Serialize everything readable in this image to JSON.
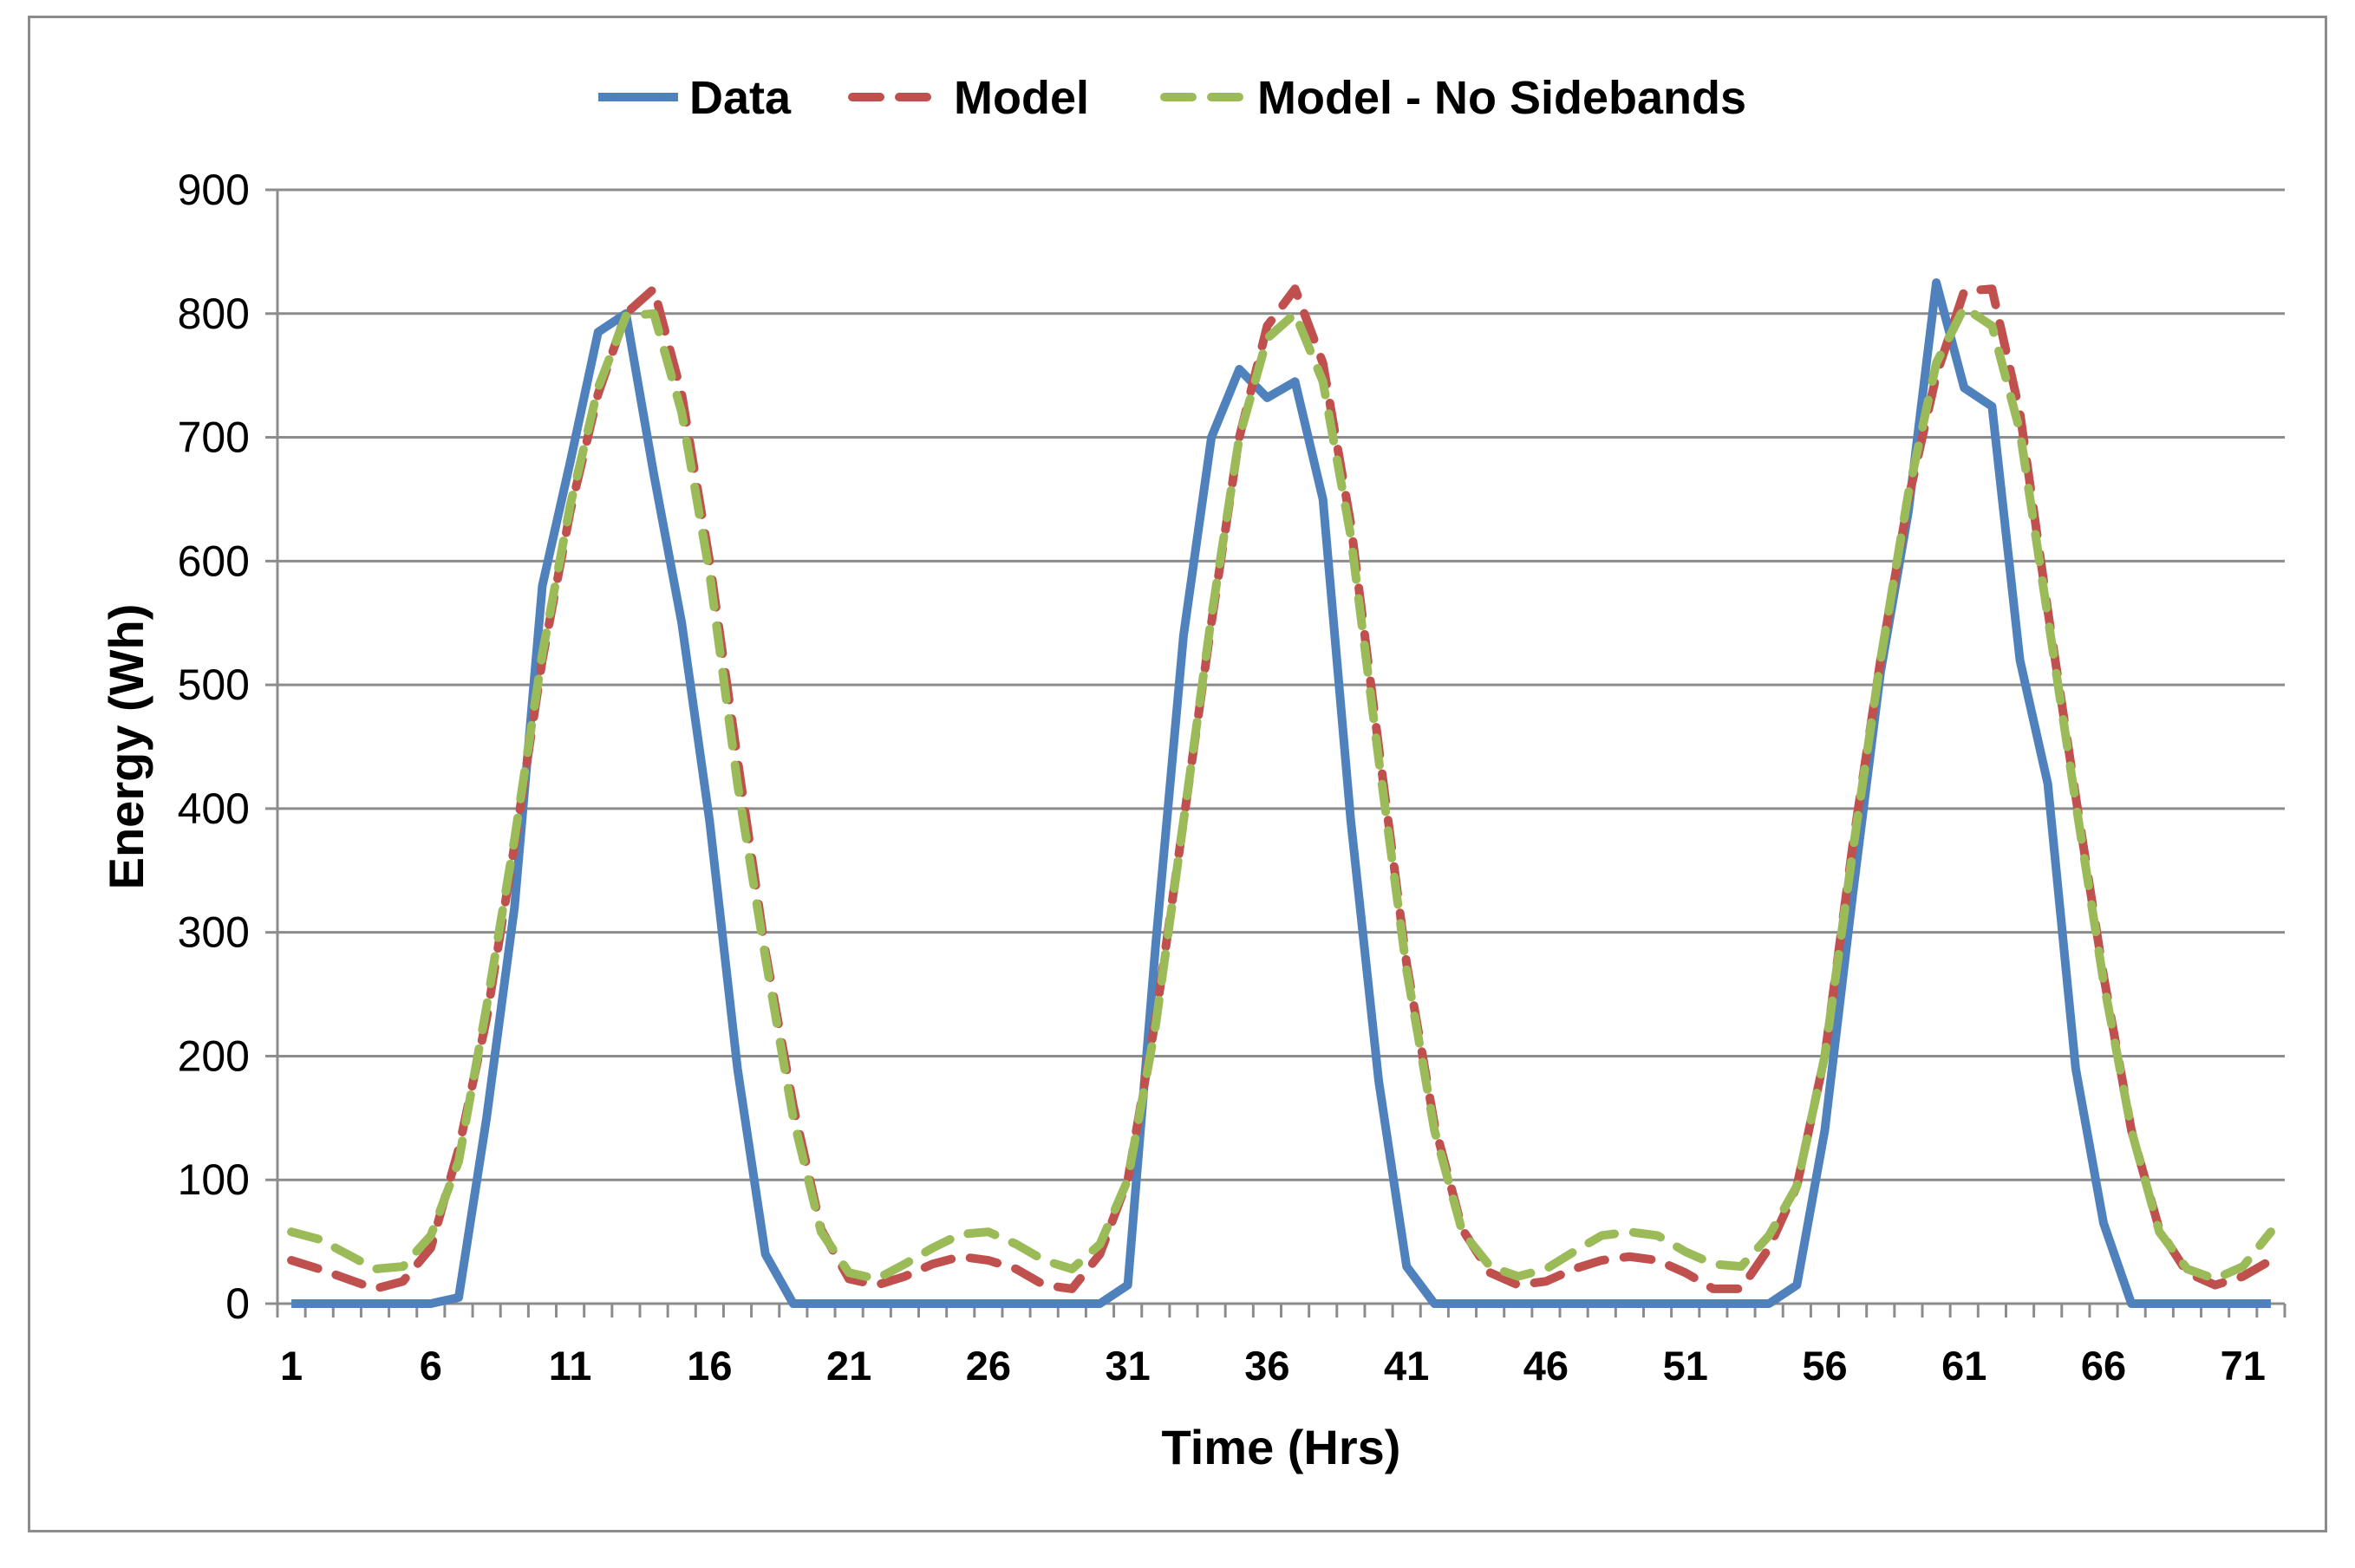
{
  "chart_data": {
    "type": "line",
    "title": "",
    "xlabel": "Time (Hrs)",
    "ylabel": "Energy (Wh)",
    "xlim": [
      1,
      72
    ],
    "ylim": [
      0,
      900
    ],
    "yticks": [
      0,
      100,
      200,
      300,
      400,
      500,
      600,
      700,
      800,
      900
    ],
    "xtick_labels": [
      1,
      6,
      11,
      16,
      21,
      26,
      31,
      36,
      41,
      46,
      51,
      56,
      61,
      66,
      71
    ],
    "grid": "horizontal",
    "legend_position": "top",
    "series": [
      {
        "name": "Data",
        "color": "#4f81bd",
        "style": "solid",
        "values": [
          0,
          0,
          0,
          0,
          0,
          0,
          5,
          150,
          320,
          580,
          680,
          785,
          800,
          670,
          550,
          390,
          190,
          40,
          0,
          0,
          0,
          0,
          0,
          0,
          0,
          0,
          0,
          0,
          0,
          0,
          15,
          290,
          540,
          700,
          755,
          732,
          745,
          650,
          390,
          180,
          30,
          0,
          0,
          0,
          0,
          0,
          0,
          0,
          0,
          0,
          0,
          0,
          0,
          0,
          15,
          140,
          330,
          510,
          640,
          825,
          740,
          725,
          520,
          420,
          190,
          65,
          0,
          0,
          0,
          0,
          0,
          0
        ]
      },
      {
        "name": "Model",
        "color": "#c0504d",
        "style": "dashed",
        "values": [
          35,
          28,
          20,
          12,
          18,
          45,
          125,
          230,
          370,
          520,
          640,
          735,
          800,
          820,
          735,
          600,
          440,
          285,
          160,
          60,
          20,
          15,
          22,
          32,
          38,
          35,
          28,
          15,
          12,
          40,
          100,
          230,
          390,
          550,
          700,
          790,
          820,
          760,
          630,
          450,
          275,
          145,
          60,
          25,
          15,
          18,
          28,
          35,
          38,
          35,
          25,
          12,
          12,
          45,
          95,
          200,
          370,
          520,
          650,
          750,
          818,
          820,
          720,
          560,
          410,
          265,
          140,
          60,
          25,
          15,
          22,
          35
        ]
      },
      {
        "name": "Model - No Sidebands",
        "color": "#9bbb59",
        "style": "dashed",
        "values": [
          58,
          52,
          40,
          28,
          30,
          55,
          115,
          240,
          375,
          525,
          645,
          740,
          798,
          800,
          720,
          590,
          420,
          280,
          150,
          58,
          25,
          20,
          32,
          45,
          56,
          58,
          48,
          35,
          28,
          48,
          100,
          225,
          390,
          555,
          700,
          780,
          800,
          745,
          620,
          440,
          270,
          140,
          58,
          30,
          22,
          28,
          42,
          55,
          58,
          55,
          42,
          32,
          30,
          55,
          95,
          200,
          365,
          520,
          655,
          760,
          805,
          790,
          705,
          555,
          405,
          260,
          140,
          58,
          28,
          20,
          30,
          58
        ]
      }
    ]
  }
}
